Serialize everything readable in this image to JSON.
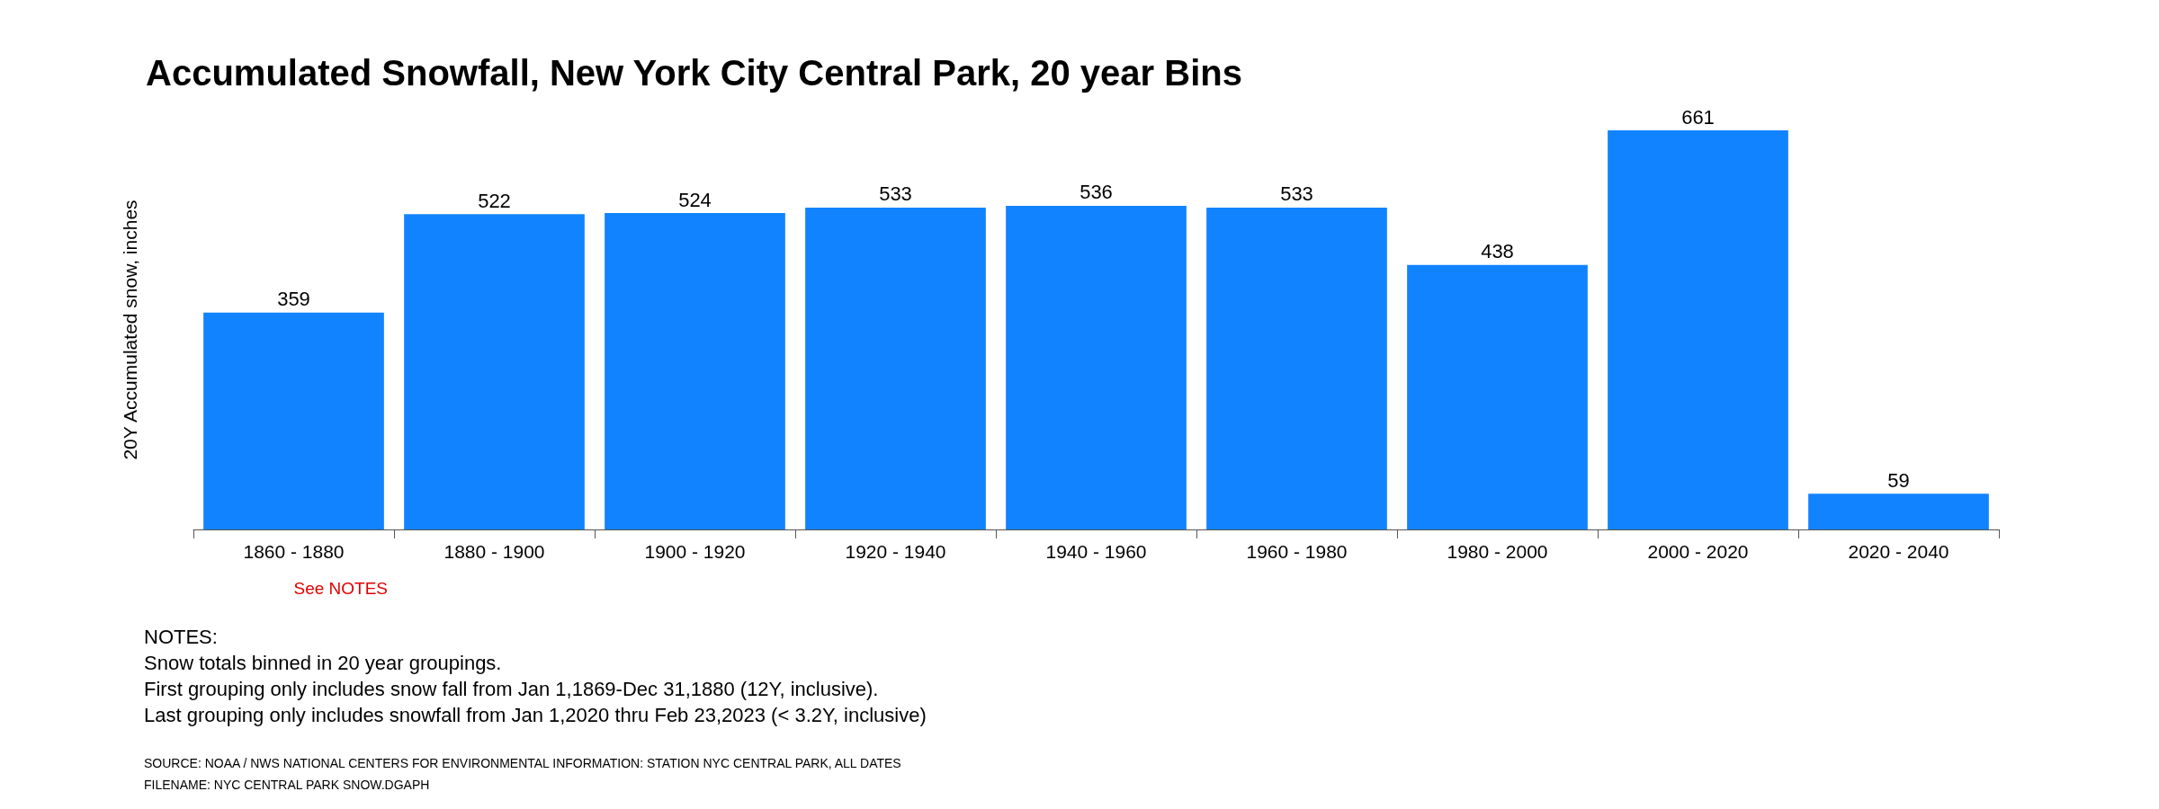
{
  "chart_data": {
    "type": "bar",
    "title": "Accumulated Snowfall, New York City Central Park, 20 year Bins",
    "ylabel": "20Y Accumulated snow, inches",
    "categories": [
      "1860 - 1880",
      "1880 - 1900",
      "1900 - 1920",
      "1920 - 1940",
      "1940 - 1960",
      "1960 - 1980",
      "1980 - 2000",
      "2000 - 2020",
      "2020 - 2040"
    ],
    "values": [
      359,
      522,
      524,
      533,
      536,
      533,
      438,
      661,
      59
    ],
    "color": "#1283ff",
    "data_labels": true,
    "tick_labels": "x",
    "grid": false,
    "annotations": [
      "See NOTES",
      "NOTES:",
      "Snow totals binned in 20 year groupings.",
      "First grouping only includes snow fall from Jan 1,1869-Dec 31,1880 (12Y, inclusive).",
      "Last grouping only includes snowfall from Jan 1,2020 thru Feb 23,2023 (< 3.2Y, inclusive)",
      "SOURCE: NOAA / NWS NATIONAL CENTERS FOR ENVIRONMENTAL INFORMATION: STATION NYC CENTRAL PARK, ALL DATES",
      "FILENAME: NYC CENTRAL PARK SNOW.DGAPH"
    ]
  }
}
